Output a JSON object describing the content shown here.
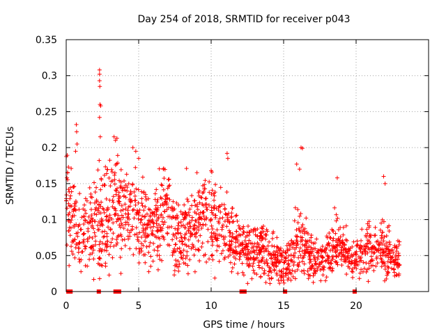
{
  "chart_data": {
    "type": "scatter",
    "title": "Day 254 of 2018, SRMTID for receiver p043",
    "xlabel": "GPS time / hours",
    "ylabel": "SRMTID / TECUs",
    "xlim": [
      0,
      25
    ],
    "ylim": [
      0,
      0.35
    ],
    "grid": true,
    "marker": "+",
    "color": "#ff0000",
    "x_ticks": [
      {
        "value": 0,
        "label": "0"
      },
      {
        "value": 5,
        "label": "5"
      },
      {
        "value": 10,
        "label": "10"
      },
      {
        "value": 15,
        "label": "15"
      },
      {
        "value": 20,
        "label": "20"
      }
    ],
    "y_ticks": [
      {
        "value": 0,
        "label": "0"
      },
      {
        "value": 0.05,
        "label": "0.05"
      },
      {
        "value": 0.1,
        "label": "0.1"
      },
      {
        "value": 0.15,
        "label": "0.15"
      },
      {
        "value": 0.2,
        "label": "0.2"
      },
      {
        "value": 0.25,
        "label": "0.25"
      },
      {
        "value": 0.3,
        "label": "0.3"
      },
      {
        "value": 0.35,
        "label": "0.35"
      }
    ],
    "baseline_x": [
      0.15,
      0.25,
      0.3,
      2.25,
      3.4,
      3.65,
      12.1,
      12.2,
      12.3,
      15.1,
      19.9
    ],
    "density_profile": [
      [
        0.0,
        0.12,
        0.045
      ],
      [
        0.5,
        0.1,
        0.035
      ],
      [
        1.0,
        0.075,
        0.03
      ],
      [
        1.5,
        0.085,
        0.03
      ],
      [
        2.0,
        0.09,
        0.035
      ],
      [
        2.5,
        0.1,
        0.045
      ],
      [
        3.0,
        0.11,
        0.045
      ],
      [
        3.5,
        0.11,
        0.04
      ],
      [
        4.0,
        0.11,
        0.04
      ],
      [
        4.5,
        0.12,
        0.04
      ],
      [
        5.0,
        0.1,
        0.035
      ],
      [
        5.5,
        0.085,
        0.03
      ],
      [
        6.0,
        0.09,
        0.03
      ],
      [
        6.5,
        0.1,
        0.035
      ],
      [
        7.0,
        0.11,
        0.035
      ],
      [
        7.5,
        0.08,
        0.03
      ],
      [
        8.0,
        0.075,
        0.03
      ],
      [
        8.5,
        0.09,
        0.03
      ],
      [
        9.0,
        0.1,
        0.035
      ],
      [
        9.5,
        0.11,
        0.035
      ],
      [
        10.0,
        0.1,
        0.035
      ],
      [
        10.5,
        0.085,
        0.03
      ],
      [
        11.0,
        0.08,
        0.025
      ],
      [
        11.5,
        0.075,
        0.025
      ],
      [
        12.0,
        0.07,
        0.025
      ],
      [
        12.5,
        0.055,
        0.02
      ],
      [
        13.0,
        0.055,
        0.02
      ],
      [
        13.5,
        0.06,
        0.02
      ],
      [
        14.0,
        0.05,
        0.02
      ],
      [
        14.5,
        0.045,
        0.018
      ],
      [
        15.0,
        0.035,
        0.018
      ],
      [
        15.5,
        0.045,
        0.018
      ],
      [
        16.0,
        0.07,
        0.03
      ],
      [
        16.5,
        0.06,
        0.03
      ],
      [
        17.0,
        0.045,
        0.015
      ],
      [
        17.5,
        0.045,
        0.015
      ],
      [
        18.0,
        0.045,
        0.015
      ],
      [
        18.5,
        0.07,
        0.025
      ],
      [
        19.0,
        0.06,
        0.02
      ],
      [
        19.5,
        0.05,
        0.015
      ],
      [
        20.0,
        0.05,
        0.015
      ],
      [
        20.5,
        0.055,
        0.018
      ],
      [
        21.0,
        0.06,
        0.02
      ],
      [
        21.5,
        0.055,
        0.018
      ],
      [
        22.0,
        0.06,
        0.025
      ],
      [
        22.5,
        0.045,
        0.015
      ],
      [
        23.0,
        0.045,
        0.015
      ]
    ],
    "peaks": [
      {
        "x": 2.3,
        "y": 0.308
      },
      {
        "x": 2.3,
        "y": 0.302
      },
      {
        "x": 2.3,
        "y": 0.293
      },
      {
        "x": 2.32,
        "y": 0.285
      },
      {
        "x": 2.33,
        "y": 0.26
      },
      {
        "x": 2.38,
        "y": 0.258
      },
      {
        "x": 2.3,
        "y": 0.242
      },
      {
        "x": 2.35,
        "y": 0.215
      },
      {
        "x": 0.7,
        "y": 0.232
      },
      {
        "x": 0.72,
        "y": 0.222
      },
      {
        "x": 0.75,
        "y": 0.205
      },
      {
        "x": 0.65,
        "y": 0.195
      },
      {
        "x": 3.3,
        "y": 0.215
      },
      {
        "x": 3.5,
        "y": 0.213
      },
      {
        "x": 3.4,
        "y": 0.21
      },
      {
        "x": 4.6,
        "y": 0.2
      },
      {
        "x": 4.8,
        "y": 0.195
      },
      {
        "x": 11.1,
        "y": 0.192
      },
      {
        "x": 11.15,
        "y": 0.185
      },
      {
        "x": 16.2,
        "y": 0.2
      },
      {
        "x": 16.3,
        "y": 0.199
      },
      {
        "x": 15.9,
        "y": 0.177
      },
      {
        "x": 16.1,
        "y": 0.17
      },
      {
        "x": 21.9,
        "y": 0.16
      },
      {
        "x": 22.0,
        "y": 0.15
      },
      {
        "x": 18.7,
        "y": 0.158
      },
      {
        "x": 8.3,
        "y": 0.171
      },
      {
        "x": 6.7,
        "y": 0.17
      },
      {
        "x": 10.0,
        "y": 0.168
      },
      {
        "x": 10.05,
        "y": 0.166
      },
      {
        "x": 5.0,
        "y": 0.185
      },
      {
        "x": 0.1,
        "y": 0.165
      },
      {
        "x": 0.05,
        "y": 0.158
      }
    ]
  }
}
